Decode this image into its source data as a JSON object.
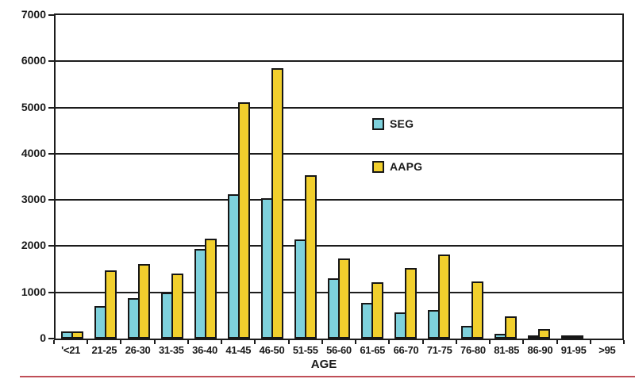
{
  "chart_data": {
    "type": "bar",
    "title": "",
    "xlabel": "AGE",
    "ylabel": "",
    "ylim": [
      0,
      7000
    ],
    "yticks": [
      0,
      1000,
      2000,
      3000,
      4000,
      5000,
      6000,
      7000
    ],
    "grid": true,
    "legend_position": "inside-center-right",
    "categories": [
      "'<21",
      "21-25",
      "26-30",
      "31-35",
      "36-40",
      "41-45",
      "46-50",
      "51-55",
      "56-60",
      "61-65",
      "66-70",
      "71-75",
      "76-80",
      "81-85",
      "86-90",
      "91-95",
      ">95"
    ],
    "series": [
      {
        "name": "SEG",
        "color": "#7ed1dc",
        "values": [
          150,
          700,
          870,
          1000,
          1940,
          3130,
          3030,
          2140,
          1310,
          780,
          570,
          610,
          280,
          110,
          60,
          30,
          0
        ]
      },
      {
        "name": "AAPG",
        "color": "#f1cf2d",
        "values": [
          150,
          1480,
          1620,
          1400,
          2160,
          5110,
          5850,
          3530,
          1740,
          1220,
          1520,
          1820,
          1240,
          480,
          210,
          30,
          0
        ]
      }
    ]
  },
  "legend": {
    "items": [
      {
        "label": "SEG",
        "color": "#7ed1dc"
      },
      {
        "label": "AAPG",
        "color": "#f1cf2d"
      }
    ]
  },
  "colors": {
    "bar_outline": "#161616",
    "grid_line": "#1c1c1c",
    "background": "#ffffff",
    "bottom_rule": "#bf4e57",
    "text": "#1a1a1a"
  }
}
